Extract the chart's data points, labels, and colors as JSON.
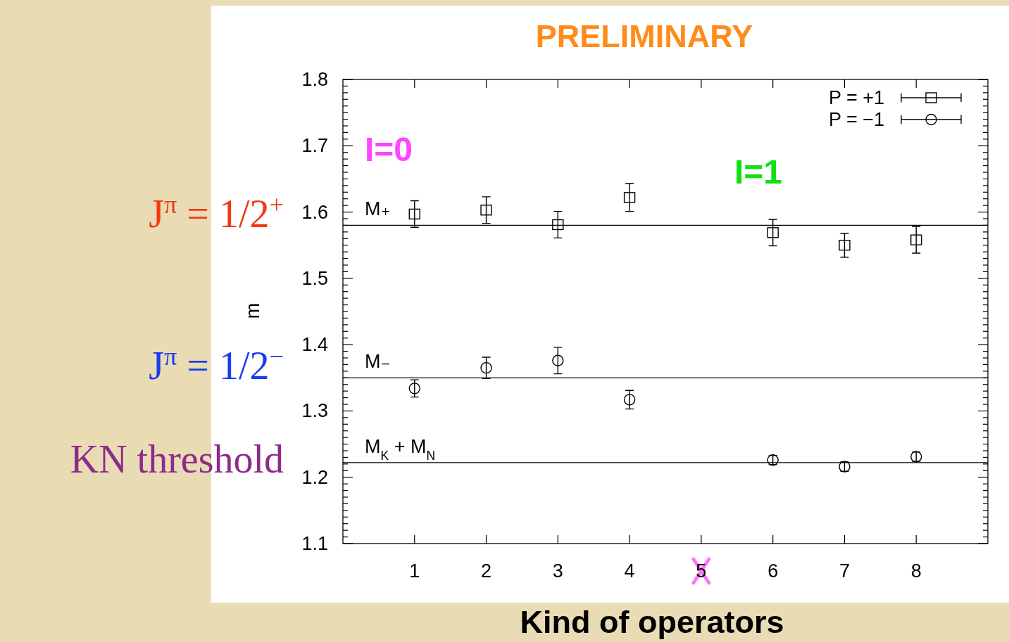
{
  "chart_data": {
    "type": "scatter",
    "title": "PRELIMINARY",
    "xlabel": "Kind of operators",
    "ylabel": "m",
    "annotations": [
      "I=0",
      "I=1",
      "J$^{π}$ = 1/2$^{+}$",
      "J$^{π}$ = 1/2$^{−}$",
      "KN threshold"
    ],
    "xlim": [
      0,
      9
    ],
    "xticks": [
      1,
      2,
      3,
      4,
      5,
      6,
      7,
      8
    ],
    "ylim": [
      1.1,
      1.8
    ],
    "yticks": [
      1.1,
      {
        "value": 1.11,
        "label": null
      },
      {
        "value": 1.12,
        "label": null
      },
      {
        "value": 1.13,
        "label": null
      },
      {
        "value": 1.14,
        "label": null
      },
      {
        "value": 1.15,
        "label": null
      },
      {
        "value": 1.16,
        "label": null
      },
      {
        "value": 1.17,
        "label": null
      },
      {
        "value": 1.18,
        "label": null
      },
      {
        "value": 1.19,
        "label": null
      },
      1.2,
      {
        "value": 1.21,
        "label": null
      },
      {
        "value": 1.22,
        "label": null
      },
      {
        "value": 1.23,
        "label": null
      },
      {
        "value": 1.24,
        "label": null
      },
      {
        "value": 1.25,
        "label": null
      },
      {
        "value": 1.26,
        "label": null
      },
      {
        "value": 1.27,
        "label": null
      },
      {
        "value": 1.28,
        "label": null
      },
      {
        "value": 1.29,
        "label": null
      },
      1.3,
      {
        "value": 1.31,
        "label": null
      },
      {
        "value": 1.32,
        "label": null
      },
      {
        "value": 1.33,
        "label": null
      },
      {
        "value": 1.34,
        "label": null
      },
      {
        "value": 1.35,
        "label": null
      },
      {
        "value": 1.36,
        "label": null
      },
      {
        "value": 1.37,
        "label": null
      },
      {
        "value": 1.38,
        "label": null
      },
      {
        "value": 1.39,
        "label": null
      },
      1.4,
      {
        "value": 1.41,
        "label": null
      },
      {
        "value": 1.42,
        "label": null
      },
      {
        "value": 1.43,
        "label": null
      },
      {
        "value": 1.44,
        "label": null
      },
      {
        "value": 1.45,
        "label": null
      },
      {
        "value": 1.46,
        "label": null
      },
      {
        "value": 1.47,
        "label": null
      },
      {
        "value": 1.48,
        "label": null
      },
      {
        "value": 1.49,
        "label": null
      },
      1.5,
      {
        "value": 1.51,
        "label": null
      },
      {
        "value": 1.52,
        "label": null
      },
      {
        "value": 1.53,
        "label": null
      },
      {
        "value": 1.54,
        "label": null
      },
      {
        "value": 1.55,
        "label": null
      },
      {
        "value": 1.56,
        "label": null
      },
      {
        "value": 1.57,
        "label": null
      },
      {
        "value": 1.58,
        "label": null
      },
      {
        "value": 1.59,
        "label": null
      },
      1.6,
      {
        "value": 1.61,
        "label": null
      },
      {
        "value": 1.62,
        "label": null
      },
      {
        "value": 1.63,
        "label": null
      },
      {
        "value": 1.64,
        "label": null
      },
      {
        "value": 1.65,
        "label": null
      },
      {
        "value": 1.66,
        "label": null
      },
      {
        "value": 1.67,
        "label": null
      },
      {
        "value": 1.68,
        "label": null
      },
      {
        "value": 1.69,
        "label": null
      },
      1.7,
      {
        "value": 1.71,
        "label": null
      },
      {
        "value": 1.72,
        "label": null
      },
      {
        "value": 1.73,
        "label": null
      },
      {
        "value": 1.74,
        "label": null
      },
      {
        "value": 1.75,
        "label": null
      },
      {
        "value": 1.76,
        "label": null
      },
      {
        "value": 1.77,
        "label": null
      },
      {
        "value": 1.78,
        "label": null
      },
      {
        "value": 1.79,
        "label": null
      },
      1.8
    ],
    "legend": "top right",
    "ref_lines": [
      {
        "axis": "y",
        "value": 1.58,
        "label": "M₊",
        "color": "#000000"
      },
      {
        "axis": "y",
        "value": 1.35,
        "label": "M₋",
        "color": "#000000"
      },
      {
        "axis": "y",
        "value": 1.222,
        "label": "M$_{K}$ + M$_{N}$",
        "color": "#000000"
      }
    ],
    "series": [
      {
        "name": "P = +1",
        "color": "#000000",
        "marker": "square",
        "x": [
          1,
          2,
          3,
          4,
          6,
          7,
          8
        ],
        "values": [
          1.597,
          1.603,
          1.581,
          1.622,
          1.569,
          1.55,
          1.558
        ],
        "errors": [
          0.02,
          0.02,
          0.02,
          0.021,
          0.02,
          0.018,
          0.02
        ]
      },
      {
        "name": "P = −1",
        "color": "#000000",
        "marker": "circle",
        "x": [
          1,
          2,
          3,
          4,
          6,
          7,
          8
        ],
        "values": [
          1.334,
          1.365,
          1.376,
          1.317,
          1.226,
          1.216,
          1.231
        ],
        "errors": [
          0.013,
          0.016,
          0.02,
          0.014,
          0.007,
          0.007,
          0.007
        ]
      }
    ]
  }
}
